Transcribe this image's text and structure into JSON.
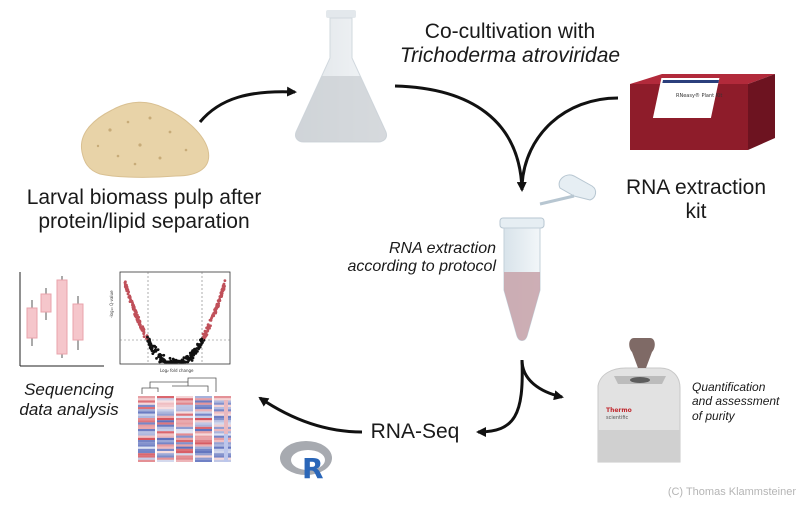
{
  "labels": {
    "cocultivation_line1": "Co-cultivation with",
    "cocultivation_line2": "Trichoderma atroviridae",
    "biomass_line1": "Larval biomass pulp after",
    "biomass_line2": "protein/lipid separation",
    "kit_line1": "RNA extraction",
    "kit_line2": "kit",
    "kit_box_text": "RNeasy® Plant Kit",
    "protocol_line1": "RNA extraction",
    "protocol_line2": "according to protocol",
    "quant_line1": "Quantification",
    "quant_line2": "and assessment",
    "quant_line3": "of purity",
    "device_brand_line1": "Thermo",
    "device_brand_line2": "scientific",
    "seq_line1": "Sequencing",
    "seq_line2": "data analysis",
    "rnaseq": "RNA-Seq",
    "r_logo": "R",
    "volcano_ylabel": "-log₁₀ Q-value",
    "volcano_xlabel": "Log₂ fold change",
    "copyright": "(C) Thomas Klammsteiner"
  },
  "colors": {
    "arrow": "#111111",
    "kit_box": "#8e1c2a",
    "tube_sample": "#c9a6ad",
    "biomass": "#e8d3a8",
    "heatmap_red": "#cf3b45",
    "heatmap_blue": "#4a5fb5",
    "r_blue": "#2a66b8"
  }
}
